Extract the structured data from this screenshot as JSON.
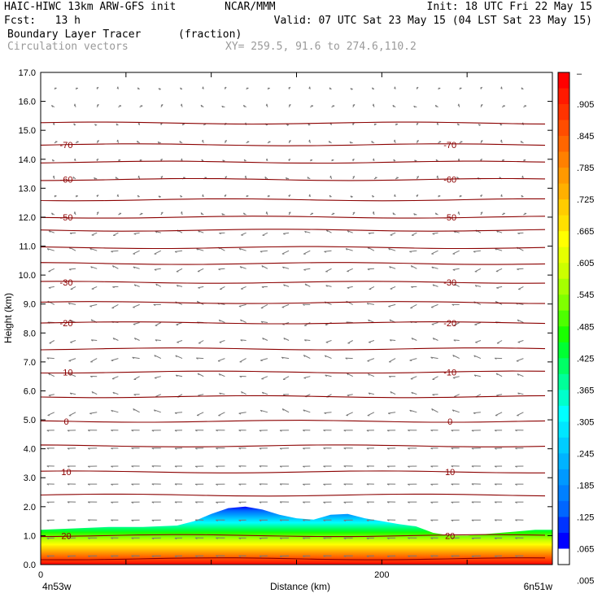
{
  "header": {
    "model": "HAIC-HIWC 13km ARW-GFS init",
    "org": "NCAR/MMM",
    "init": "Init: 18 UTC Fri 22 May 15",
    "fcst": "Fcst:   13 h",
    "valid": "Valid: 07 UTC Sat 23 May 15 (04 LST Sat 23 May 15)",
    "field": "Boundary Layer Tracer",
    "units": "(fraction)",
    "vectors": "Circulation vectors",
    "xy": "XY= 259.5, 91.6 to 274.6,110.2"
  },
  "chart_data": {
    "type": "heatmap",
    "xlabel": "Distance (km)",
    "ylabel": "Height (km)",
    "xlim": [
      0,
      300
    ],
    "ylim": [
      0,
      17
    ],
    "x_ticks": [
      {
        "value": 0,
        "label": "0"
      },
      {
        "value": 200,
        "label": "200"
      }
    ],
    "x_endpoints": {
      "left": "4n53w",
      "right": "6n51w"
    },
    "y_ticks": [
      "0.0",
      "1.0",
      "2.0",
      "3.0",
      "4.0",
      "5.0",
      "6.0",
      "7.0",
      "8.0",
      "9.0",
      "10.0",
      "11.0",
      "12.0",
      "13.0",
      "14.0",
      "15.0",
      "16.0",
      "17.0"
    ],
    "colorbar": {
      "top_label": "–",
      "labels": [
        ".905",
        ".845",
        ".785",
        ".725",
        ".665",
        ".605",
        ".545",
        ".485",
        ".425",
        ".365",
        ".305",
        ".245",
        ".185",
        ".125",
        ".065",
        ".005"
      ],
      "colors": [
        "#ff0000",
        "#ff1a00",
        "#ff3300",
        "#ff4d00",
        "#ff6600",
        "#ff8000",
        "#ff9900",
        "#ffb000",
        "#ffcc00",
        "#ffe000",
        "#ffff00",
        "#e6ff00",
        "#ccff00",
        "#a6ff00",
        "#80ff00",
        "#4dff00",
        "#1aff00",
        "#00ff33",
        "#00ff66",
        "#00ff99",
        "#00ffcc",
        "#00ffff",
        "#00e6ff",
        "#00ccff",
        "#00b3ff",
        "#0099ff",
        "#0080ff",
        "#0066ff",
        "#0033ff",
        "#0000ff",
        "#ffffff"
      ]
    },
    "tracer_top_km": {
      "x": [
        0,
        20,
        40,
        60,
        80,
        90,
        100,
        110,
        120,
        130,
        140,
        150,
        160,
        170,
        180,
        190,
        200,
        210,
        220,
        230,
        240,
        250,
        260,
        270,
        280,
        290,
        300
      ],
      "y": [
        1.2,
        1.25,
        1.3,
        1.3,
        1.35,
        1.5,
        1.75,
        1.95,
        2.0,
        1.9,
        1.72,
        1.6,
        1.55,
        1.72,
        1.75,
        1.6,
        1.5,
        1.4,
        1.32,
        1.1,
        1.0,
        1.0,
        1.05,
        1.1,
        1.15,
        1.2,
        1.2
      ]
    },
    "temperature_contours_km": [
      {
        "label": "20",
        "y": 1.0
      },
      {
        "label": "10",
        "y": 3.2
      },
      {
        "label": "0",
        "y": 4.95
      },
      {
        "label": "-10",
        "y": 6.65
      },
      {
        "label": "-20",
        "y": 8.35
      },
      {
        "label": "-30",
        "y": 9.75
      },
      {
        "label": "-50",
        "y": 12.0
      },
      {
        "label": "-60",
        "y": 13.3
      },
      {
        "label": "-70",
        "y": 14.5
      }
    ],
    "other_isotherms_km": [
      0.2,
      2.4,
      4.1,
      5.8,
      7.45,
      9.05,
      10.4,
      10.95,
      11.55,
      12.6,
      13.9,
      15.25
    ],
    "contour_label_x_km": [
      15,
      240
    ]
  }
}
